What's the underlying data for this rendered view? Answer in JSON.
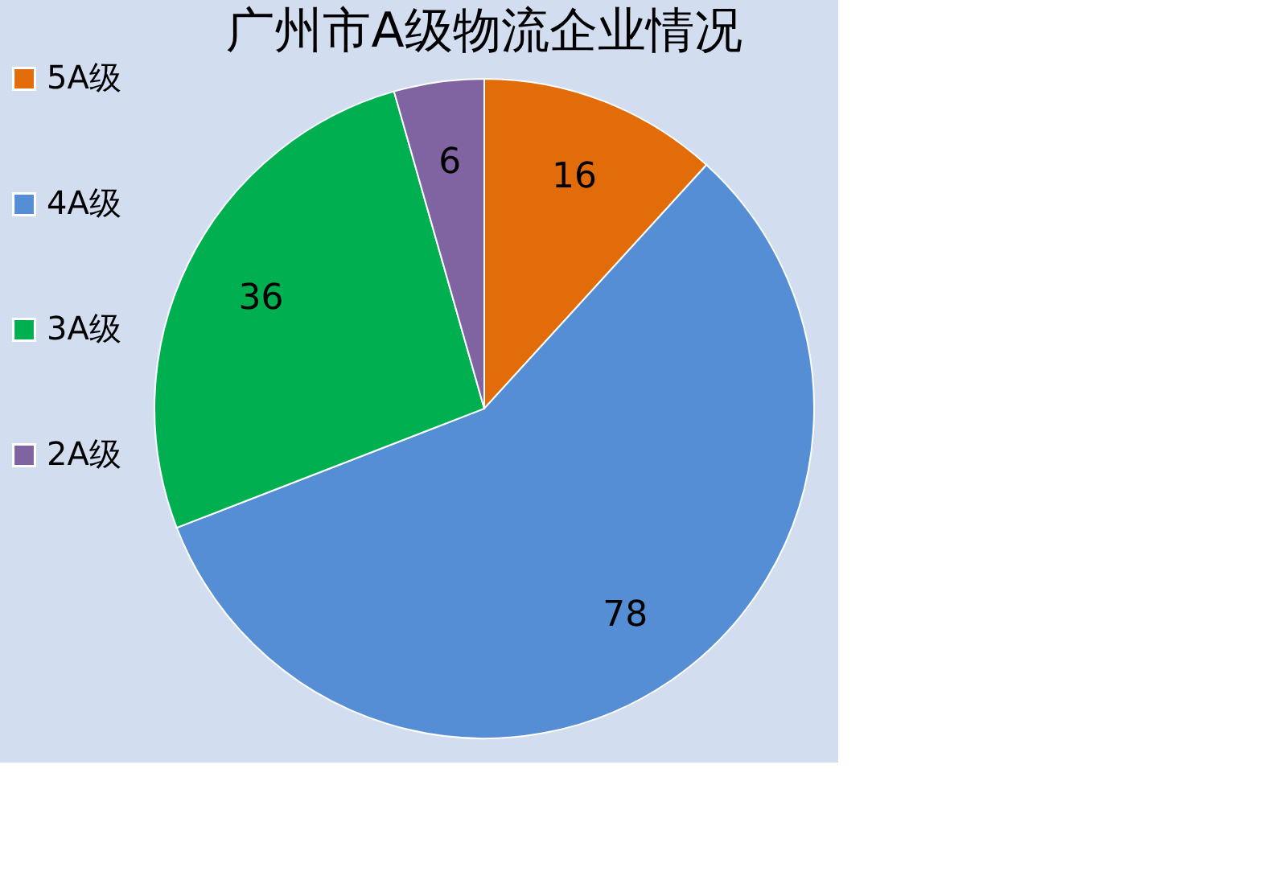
{
  "chart_data": {
    "type": "pie",
    "title": "广州市A级物流企业情况",
    "categories": [
      "5A级",
      "4A级",
      "3A级",
      "2A级"
    ],
    "values": [
      16,
      78,
      36,
      6
    ],
    "colors": [
      "#e36c0a",
      "#558ed5",
      "#00b050",
      "#8064a2"
    ],
    "data_labels": true,
    "legend": "left"
  }
}
